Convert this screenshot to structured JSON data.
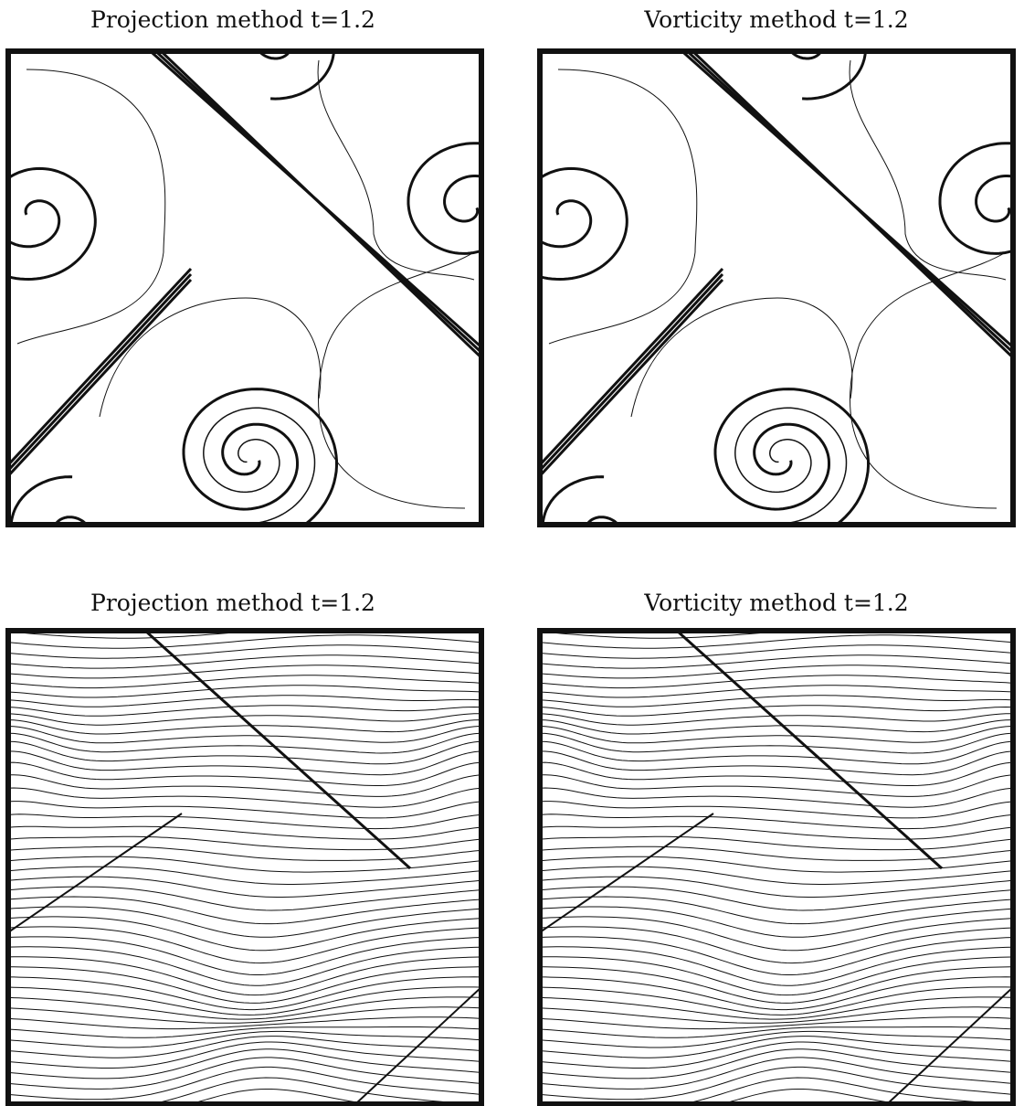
{
  "panels": [
    {
      "title": "Projection method t=1.2"
    },
    {
      "title": "Vorticity method t=1.2"
    },
    {
      "title": "Projection method t=1.2"
    },
    {
      "title": "Vorticity method t=1.2"
    }
  ]
}
